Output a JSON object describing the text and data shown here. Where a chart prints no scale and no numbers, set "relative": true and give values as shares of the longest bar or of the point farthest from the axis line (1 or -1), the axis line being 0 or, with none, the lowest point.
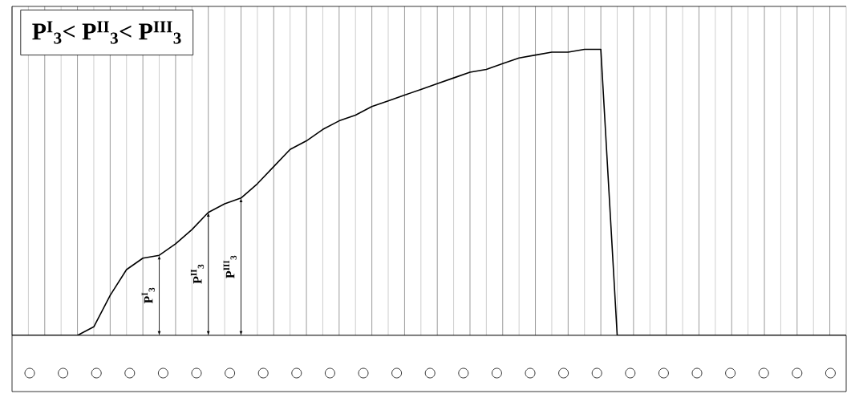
{
  "chart_data": {
    "type": "line",
    "relative": true,
    "color": "#000000",
    "grid": true,
    "tick_labels": false,
    "marker": "none",
    "line_style": "solid",
    "categories": [
      null,
      null,
      null,
      null,
      null,
      null,
      null,
      null,
      null,
      null,
      null,
      null,
      null,
      null,
      null,
      null,
      null,
      null,
      null,
      null,
      null,
      null,
      null,
      null,
      null,
      null,
      null,
      null,
      null,
      null,
      null,
      null,
      null,
      null,
      null,
      null,
      null,
      null,
      null,
      null,
      null,
      null,
      null,
      null,
      null,
      null,
      null,
      null,
      null,
      null,
      null,
      null
    ],
    "values": [
      0,
      0,
      0,
      0,
      0,
      0.03,
      0.14,
      0.23,
      0.27,
      0.28,
      0.32,
      0.37,
      0.43,
      0.46,
      0.48,
      0.53,
      0.59,
      0.65,
      0.68,
      0.72,
      0.75,
      0.77,
      0.8,
      0.82,
      0.84,
      0.86,
      0.88,
      0.9,
      0.92,
      0.93,
      0.95,
      0.97,
      0.98,
      0.99,
      0.99,
      1,
      1,
      0,
      0,
      0,
      0,
      0,
      0,
      0,
      0,
      0,
      0,
      0,
      0,
      0,
      0,
      0
    ],
    "annotations": [
      "P$^{I}$$_{3}$< P$^{II}$$_{3}$< P$^{III}$$_{3}$",
      "P$^{I}$$_{3}$",
      "P$^{II}$$_{3}$",
      "P$^{III}$$_{3}$"
    ]
  }
}
